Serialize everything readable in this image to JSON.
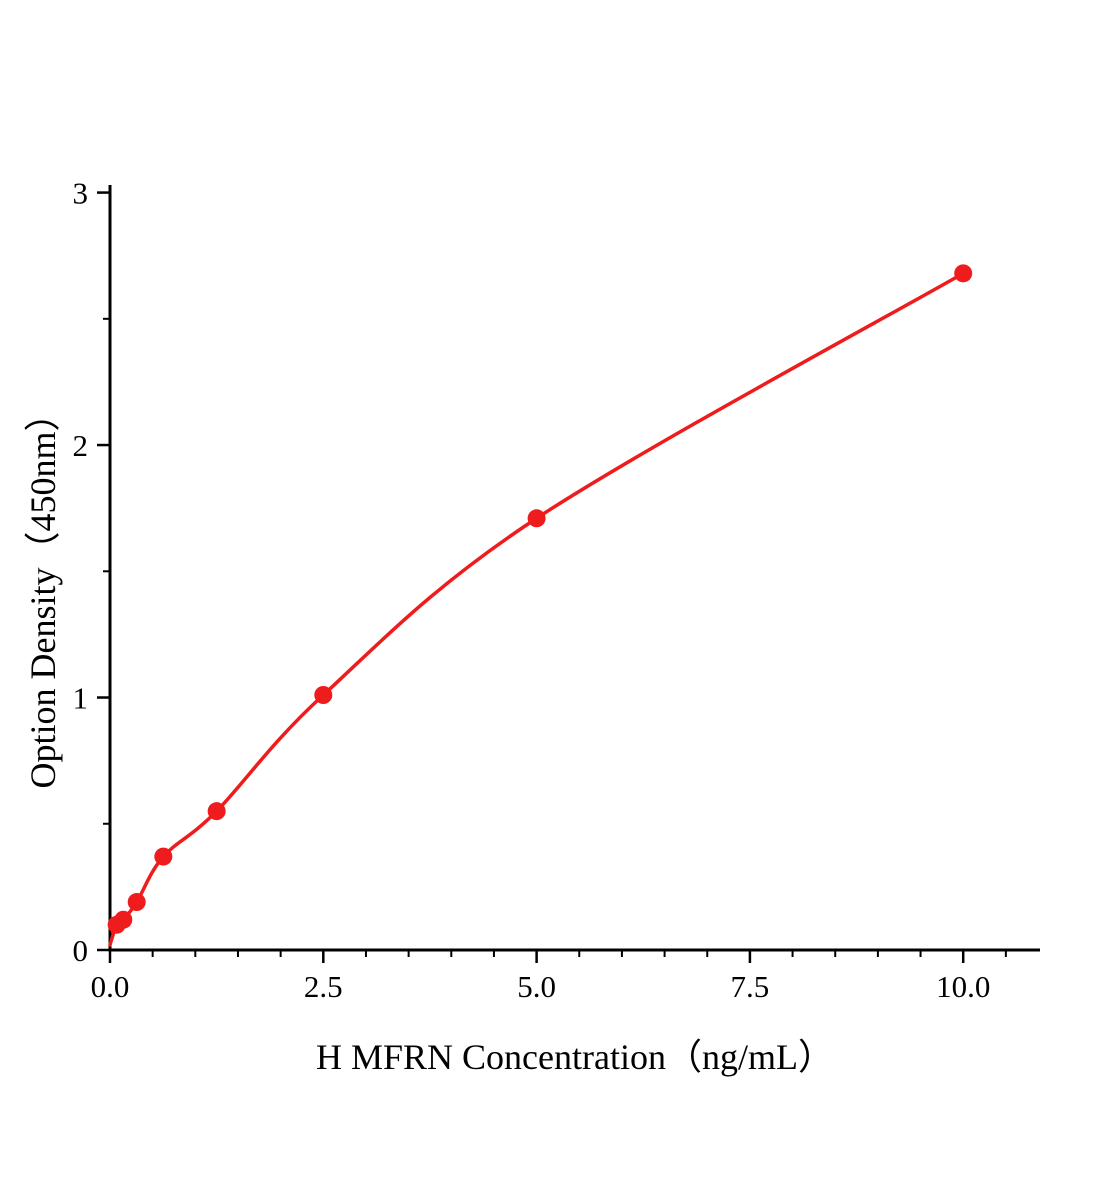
{
  "page": {
    "background": "#ffffff"
  },
  "chart_data": {
    "type": "scatter",
    "title": "",
    "xlabel": "H MFRN Concentration（ng/mL）",
    "ylabel": "Option Density（450nm）",
    "x": [
      0.078,
      0.156,
      0.313,
      0.625,
      1.25,
      2.5,
      5.0,
      10.0
    ],
    "y": [
      0.1,
      0.12,
      0.19,
      0.37,
      0.55,
      1.01,
      1.71,
      2.68
    ],
    "curve_start": [
      0,
      0.02
    ],
    "xlim": [
      0,
      10.9
    ],
    "ylim": [
      0,
      3.03
    ],
    "x_major_ticks": [
      0.0,
      2.5,
      5.0,
      7.5,
      10.0
    ],
    "x_tick_labels": [
      "0.0",
      "2.5",
      "5.0",
      "7.5",
      "10.0"
    ],
    "x_minor_step": 0.5,
    "y_major_ticks": [
      0,
      1,
      2,
      3
    ],
    "y_tick_labels": [
      "0",
      "1",
      "2",
      "3"
    ],
    "y_minor_step": 0.5,
    "line_color": "#ee1c1c",
    "marker_color": "#ee1c1c",
    "marker_radius": 9,
    "axis_color": "#000000",
    "grid": false,
    "legend": null
  }
}
